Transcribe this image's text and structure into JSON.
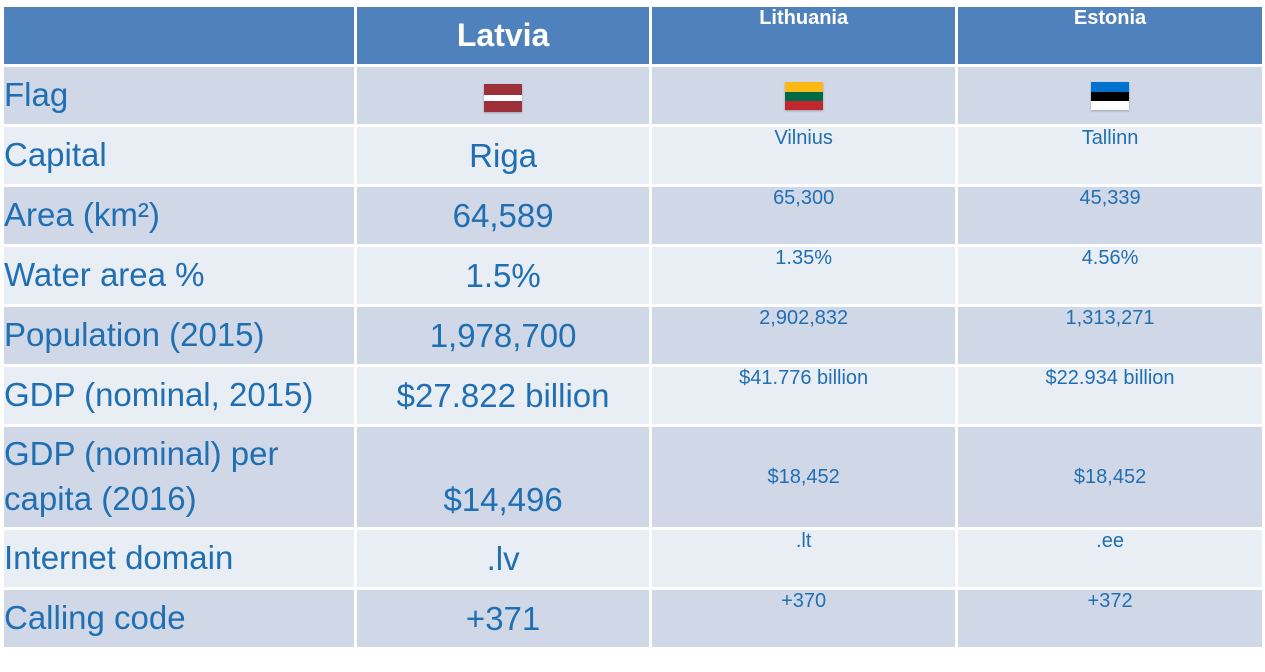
{
  "header": {
    "blank": "",
    "latvia": "Latvia",
    "lithuania": "Lithuania",
    "estonia": "Estonia"
  },
  "rows": [
    {
      "label": "Flag",
      "latvia": "",
      "lithuania": "",
      "estonia": ""
    },
    {
      "label": "Capital",
      "latvia": "Riga",
      "lithuania": "Vilnius",
      "estonia": "Tallinn"
    },
    {
      "label": "Area (km²)",
      "latvia": "64,589",
      "lithuania": "65,300",
      "estonia": "45,339"
    },
    {
      "label": "Water area %",
      "latvia": "1.5%",
      "lithuania": "1.35%",
      "estonia": "4.56%"
    },
    {
      "label": "Population (2015)",
      "latvia": "1,978,700",
      "lithuania": "2,902,832",
      "estonia": "1,313,271"
    },
    {
      "label": "GDP (nominal, 2015)",
      "latvia": "$27.822 billion",
      "lithuania": "$41.776 billion",
      "estonia": "$22.934 billion"
    },
    {
      "label_line1": "GDP (nominal) per",
      "label_line2": "capita (2016)",
      "latvia": "$14,496",
      "lithuania": "$18,452",
      "estonia": "$18,452"
    },
    {
      "label": "Internet domain",
      "latvia": ".lv",
      "lithuania": ".lt",
      "estonia": ".ee"
    },
    {
      "label": "Calling code",
      "latvia": "+371",
      "lithuania": "+370",
      "estonia": "+372"
    }
  ],
  "colors": {
    "header": "#4f81bd",
    "row_dark": "#d0d8e8",
    "row_light": "#e9edf4",
    "text": "#1f6fb2"
  },
  "flags": {
    "latvia": [
      "#9e3039",
      "#ffffff",
      "#9e3039"
    ],
    "lithuania": [
      "#fdb913",
      "#006a44",
      "#c1272d"
    ],
    "estonia": [
      "#0072ce",
      "#000000",
      "#ffffff"
    ]
  }
}
